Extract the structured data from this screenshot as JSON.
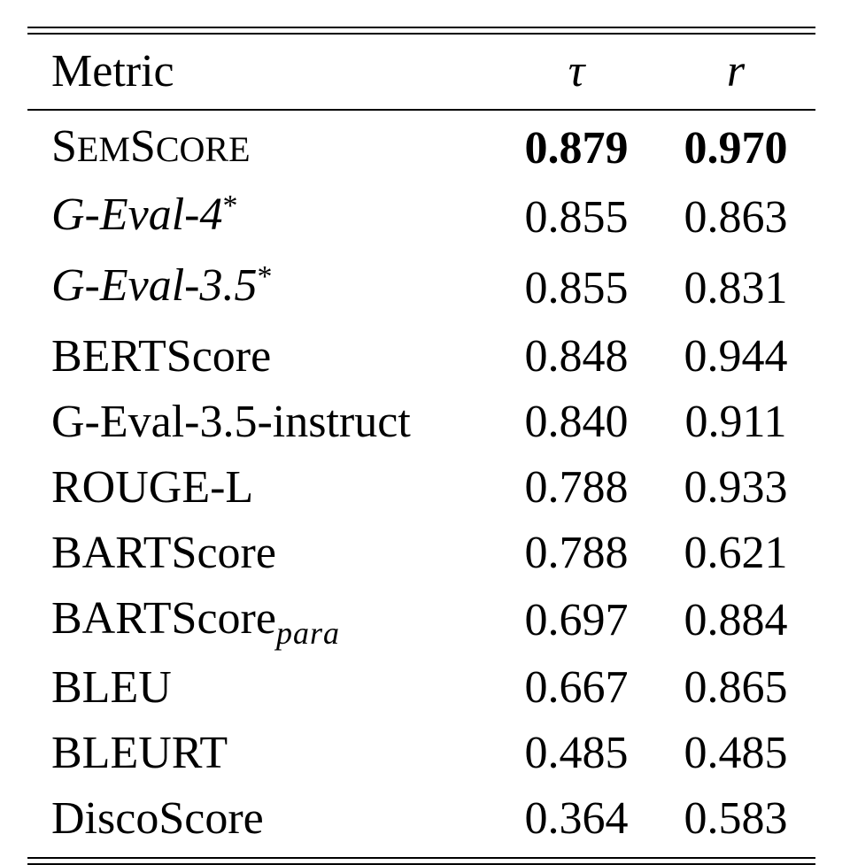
{
  "table": {
    "headers": {
      "metric": "Metric",
      "tau": "τ",
      "r": "r"
    },
    "rows": [
      {
        "metric_parts": [
          "S",
          "EM",
          "S",
          "CORE"
        ],
        "tau": "0.879",
        "r": "0.970",
        "bold": true
      },
      {
        "metric": "G-Eval-4",
        "suffix": "*",
        "tau": "0.855",
        "r": "0.863",
        "italic": true
      },
      {
        "metric": "G-Eval-3.5",
        "suffix": "*",
        "tau": "0.855",
        "r": "0.831",
        "italic": true
      },
      {
        "metric": "BERTScore",
        "tau": "0.848",
        "r": "0.944"
      },
      {
        "metric": "G-Eval-3.5-instruct",
        "tau": "0.840",
        "r": "0.911"
      },
      {
        "metric": "ROUGE-L",
        "tau": "0.788",
        "r": "0.933"
      },
      {
        "metric": "BARTScore",
        "tau": "0.788",
        "r": "0.621"
      },
      {
        "metric": "BARTScore",
        "subscript": "para",
        "tau": "0.697",
        "r": "0.884"
      },
      {
        "metric": "BLEU",
        "tau": "0.667",
        "r": "0.865"
      },
      {
        "metric": "BLEURT",
        "tau": "0.485",
        "r": "0.485"
      },
      {
        "metric": "DiscoScore",
        "tau": "0.364",
        "r": "0.583"
      }
    ]
  }
}
